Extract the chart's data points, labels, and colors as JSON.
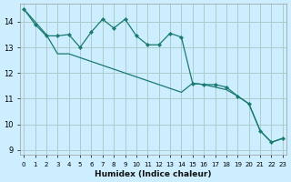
{
  "xlabel": "Humidex (Indice chaleur)",
  "bg_color": "#cceeff",
  "grid_color": "#aacccc",
  "line_color": "#1a7a6e",
  "x_ticks": [
    0,
    1,
    2,
    3,
    4,
    5,
    6,
    7,
    8,
    9,
    10,
    11,
    12,
    13,
    14,
    15,
    16,
    17,
    18,
    19,
    20,
    21,
    22,
    23
  ],
  "ylim": [
    8.8,
    14.7
  ],
  "xlim": [
    -0.3,
    23.3
  ],
  "yticks": [
    9,
    10,
    11,
    12,
    13,
    14
  ],
  "series1_x": [
    0,
    1,
    2,
    3,
    4,
    5,
    6,
    7,
    8,
    9,
    10,
    11,
    12,
    13,
    14,
    15,
    16,
    17,
    18,
    19,
    20,
    21,
    22,
    23
  ],
  "series1_y": [
    14.5,
    13.9,
    13.45,
    13.45,
    13.5,
    13.0,
    13.6,
    14.1,
    13.75,
    14.1,
    13.45,
    13.1,
    13.1,
    13.55,
    13.4,
    11.6,
    11.55,
    11.55,
    11.45,
    11.1,
    10.8,
    9.75,
    9.3,
    9.45
  ],
  "series2_x": [
    0,
    1,
    2,
    3,
    4,
    5,
    6,
    7,
    8,
    9,
    10,
    11,
    12,
    13,
    14,
    15,
    16,
    17,
    18,
    19,
    20,
    21,
    22,
    23
  ],
  "series2_y": [
    14.5,
    14.0,
    13.5,
    12.75,
    12.75,
    12.6,
    12.45,
    12.3,
    12.15,
    12.0,
    11.85,
    11.7,
    11.55,
    11.4,
    11.25,
    11.6,
    11.55,
    11.45,
    11.35,
    11.1,
    10.8,
    9.75,
    9.3,
    9.45
  ]
}
